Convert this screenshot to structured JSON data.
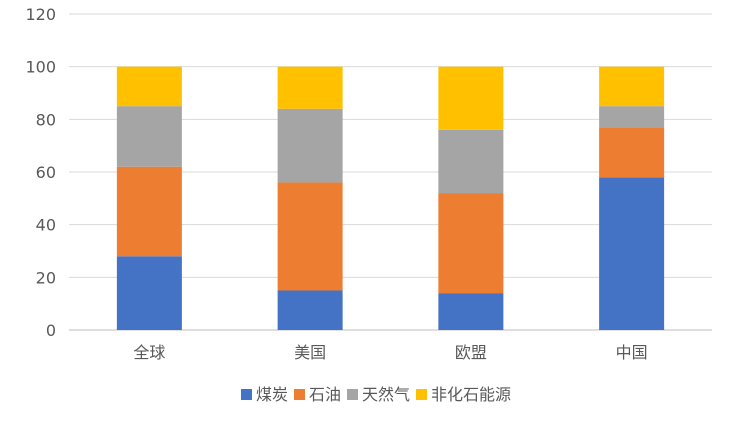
{
  "chart_data": {
    "type": "bar",
    "stacked": true,
    "categories": [
      "全球",
      "美国",
      "欧盟",
      "中国"
    ],
    "series": [
      {
        "name": "煤炭",
        "values": [
          28,
          15,
          14,
          58
        ],
        "color": "#4472C4"
      },
      {
        "name": "石油",
        "values": [
          34,
          41,
          38,
          19
        ],
        "color": "#ED7D31"
      },
      {
        "name": "天然气",
        "values": [
          23,
          28,
          24,
          8
        ],
        "color": "#A5A5A5"
      },
      {
        "name": "非化石能源",
        "values": [
          15,
          16,
          24,
          15
        ],
        "color": "#FFC000"
      }
    ],
    "title": "",
    "xlabel": "",
    "ylabel": "",
    "ylim": [
      0,
      120
    ],
    "yticks": [
      "0",
      "20",
      "40",
      "60",
      "80",
      "100",
      "120"
    ],
    "grid": true,
    "legend_position": "bottom"
  }
}
